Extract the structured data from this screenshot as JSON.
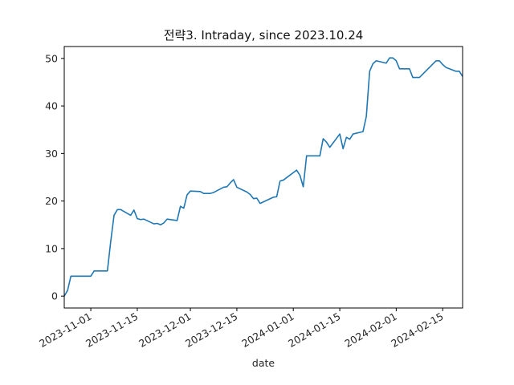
{
  "chart_data": {
    "type": "line",
    "title": "전략3. Intraday, since 2023.10.24",
    "xlabel": "date",
    "ylabel": "",
    "xlim": [
      "2023-10-24",
      "2024-02-21"
    ],
    "ylim": [
      -2.5,
      52.5
    ],
    "x_ticks": [
      "2023-11-01",
      "2023-11-15",
      "2023-12-01",
      "2023-12-15",
      "2024-01-01",
      "2024-01-15",
      "2024-02-01",
      "2024-02-15"
    ],
    "y_ticks": [
      0,
      10,
      20,
      30,
      40,
      50
    ],
    "grid": false,
    "line_color": "#1f77b4",
    "series": [
      {
        "x": [
          "2023-10-24",
          "2023-10-25",
          "2023-10-26",
          "2023-10-27",
          "2023-10-30",
          "2023-10-31",
          "2023-11-01",
          "2023-11-02",
          "2023-11-03",
          "2023-11-06",
          "2023-11-07",
          "2023-11-08",
          "2023-11-09",
          "2023-11-10",
          "2023-11-13",
          "2023-11-14",
          "2023-11-15",
          "2023-11-16",
          "2023-11-17",
          "2023-11-20",
          "2023-11-21",
          "2023-11-22",
          "2023-11-23",
          "2023-11-24",
          "2023-11-27",
          "2023-11-28",
          "2023-11-29",
          "2023-11-30",
          "2023-12-01",
          "2023-12-04",
          "2023-12-05",
          "2023-12-06",
          "2023-12-07",
          "2023-12-08",
          "2023-12-11",
          "2023-12-12",
          "2023-12-13",
          "2023-12-14",
          "2023-12-15",
          "2023-12-18",
          "2023-12-19",
          "2023-12-20",
          "2023-12-21",
          "2023-12-22",
          "2023-12-26",
          "2023-12-27",
          "2023-12-28",
          "2023-12-29",
          "2024-01-02",
          "2024-01-03",
          "2024-01-04",
          "2024-01-05",
          "2024-01-08",
          "2024-01-09",
          "2024-01-10",
          "2024-01-11",
          "2024-01-12",
          "2024-01-15",
          "2024-01-16",
          "2024-01-17",
          "2024-01-18",
          "2024-01-19",
          "2024-01-22",
          "2024-01-23",
          "2024-01-24",
          "2024-01-25",
          "2024-01-26",
          "2024-01-29",
          "2024-01-30",
          "2024-01-31",
          "2024-02-01",
          "2024-02-02",
          "2024-02-05",
          "2024-02-06",
          "2024-02-07",
          "2024-02-08",
          "2024-02-13",
          "2024-02-14",
          "2024-02-15",
          "2024-02-16",
          "2024-02-19",
          "2024-02-20",
          "2024-02-21"
        ],
        "y": [
          0,
          1.2,
          4.2,
          4.2,
          4.2,
          4.2,
          4.2,
          5.3,
          5.3,
          5.3,
          11.5,
          17.0,
          18.2,
          18.2,
          17.0,
          18.1,
          16.3,
          16.1,
          16.2,
          15.2,
          15.3,
          15.0,
          15.4,
          16.2,
          15.9,
          18.9,
          18.5,
          21.3,
          22.1,
          22.0,
          21.6,
          21.6,
          21.6,
          21.8,
          22.9,
          23.0,
          23.8,
          24.5,
          22.9,
          21.9,
          21.4,
          20.5,
          20.6,
          19.5,
          20.8,
          20.9,
          24.2,
          24.4,
          26.5,
          25.4,
          23.0,
          29.5,
          29.5,
          29.5,
          33.1,
          32.4,
          31.3,
          34.1,
          31.0,
          33.4,
          33.0,
          34.1,
          34.6,
          37.8,
          47.3,
          48.9,
          49.5,
          49.0,
          50.1,
          50.1,
          49.5,
          47.8,
          47.8,
          46.0,
          46.0,
          46.0,
          49.5,
          49.5,
          48.7,
          48.1,
          47.3,
          47.3,
          46.2
        ]
      }
    ]
  }
}
